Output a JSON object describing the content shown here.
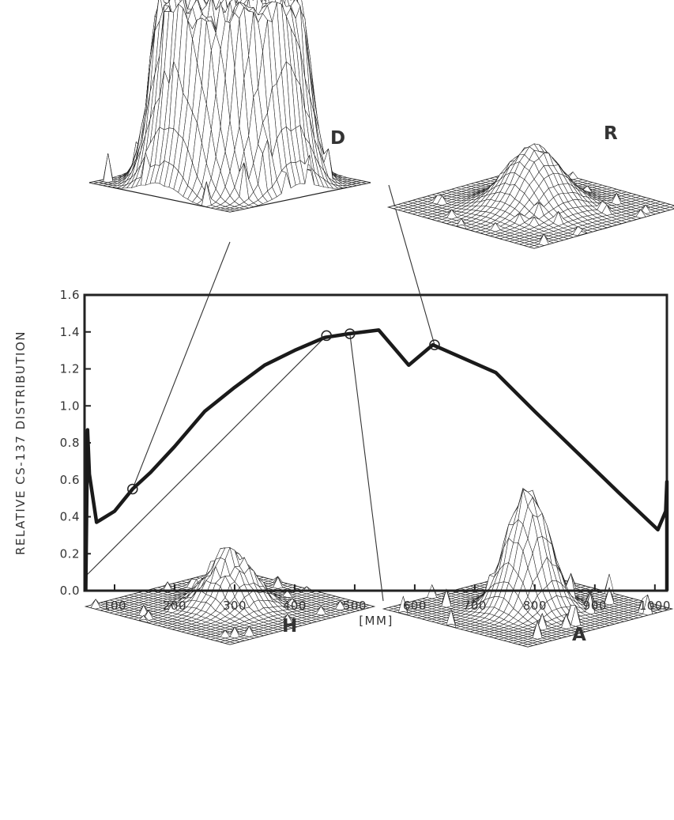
{
  "chart_data": {
    "type": "line",
    "title": "",
    "xlabel": "[MM]",
    "ylabel": "RELATIVE  CS-137  DISTRIBUTION",
    "xlim": [
      50,
      1020
    ],
    "ylim": [
      0,
      1.6
    ],
    "x_ticks": [
      100,
      200,
      300,
      400,
      500,
      600,
      700,
      800,
      900,
      1000
    ],
    "y_ticks": [
      "0.0",
      "0.2",
      "0.4",
      "0.6",
      "0.8",
      "1.0",
      "1.2",
      "1.4",
      "1.6"
    ],
    "grid": false,
    "series": [
      {
        "points": [
          [
            52,
            0.0
          ],
          [
            55,
            0.87
          ],
          [
            58,
            0.63
          ],
          [
            70,
            0.37
          ],
          [
            100,
            0.43
          ],
          [
            130,
            0.55
          ],
          [
            160,
            0.64
          ],
          [
            200,
            0.78
          ],
          [
            250,
            0.97
          ],
          [
            300,
            1.1
          ],
          [
            350,
            1.22
          ],
          [
            400,
            1.3
          ],
          [
            450,
            1.37
          ],
          [
            490,
            1.39
          ],
          [
            540,
            1.41
          ],
          [
            590,
            1.22
          ],
          [
            630,
            1.33
          ],
          [
            735,
            1.18
          ],
          [
            800,
            0.97
          ],
          [
            870,
            0.75
          ],
          [
            940,
            0.53
          ],
          [
            1005,
            0.33
          ],
          [
            1018,
            0.43
          ],
          [
            1020,
            0.59
          ],
          [
            1020,
            0.0
          ]
        ]
      }
    ],
    "highlighted_points": [
      {
        "panel": "D",
        "x": 130,
        "y": 0.55
      },
      {
        "panel": "H",
        "x": 453,
        "y": 1.38
      },
      {
        "panel": "A",
        "x": 492,
        "y": 1.39
      },
      {
        "panel": "R",
        "x": 633,
        "y": 1.33
      }
    ]
  },
  "panels": [
    {
      "id": "D",
      "label": "D",
      "peak": 1.0,
      "sigma": 0.36,
      "flat": 3.2,
      "noise": 0.1
    },
    {
      "id": "R",
      "label": "R",
      "peak": 0.55,
      "sigma": 0.2,
      "flat": 1,
      "noise": 0.05
    },
    {
      "id": "H",
      "label": "H",
      "peak": 0.55,
      "sigma": 0.16,
      "flat": 1,
      "noise": 0.16
    },
    {
      "id": "A",
      "label": "A",
      "peak": 0.85,
      "sigma": 0.15,
      "flat": 1,
      "noise": 0.08
    }
  ]
}
